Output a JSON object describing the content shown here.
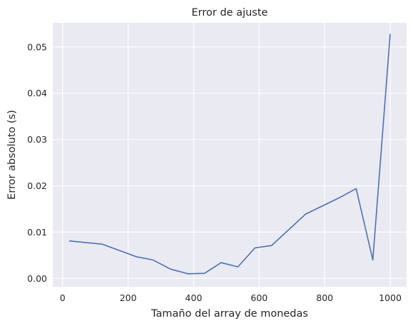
{
  "chart_data": {
    "type": "line",
    "title": "Error de ajuste",
    "xlabel": "Tamaño del array de monedas",
    "ylabel": "Error absoluto (s)",
    "xlim": [
      -30,
      1050
    ],
    "ylim": [
      -0.0018,
      0.0552
    ],
    "xticks": [
      0,
      200,
      400,
      600,
      800,
      1000
    ],
    "yticks": [
      0.0,
      0.01,
      0.02,
      0.03,
      0.04,
      0.05
    ],
    "ytick_labels": [
      "0.00",
      "0.01",
      "0.02",
      "0.03",
      "0.04",
      "0.05"
    ],
    "grid": true,
    "series": [
      {
        "color": "#4c72b0",
        "x": [
          20,
          121,
          224,
          276,
          330,
          383,
          433,
          484,
          535,
          587,
          638,
          742,
          844,
          896,
          947,
          1000
        ],
        "y": [
          0.0081,
          0.0074,
          0.0047,
          0.004,
          0.002,
          0.001,
          0.0011,
          0.0034,
          0.0025,
          0.0066,
          0.0071,
          0.0139,
          0.0174,
          0.0194,
          0.004,
          0.0528
        ]
      }
    ]
  }
}
